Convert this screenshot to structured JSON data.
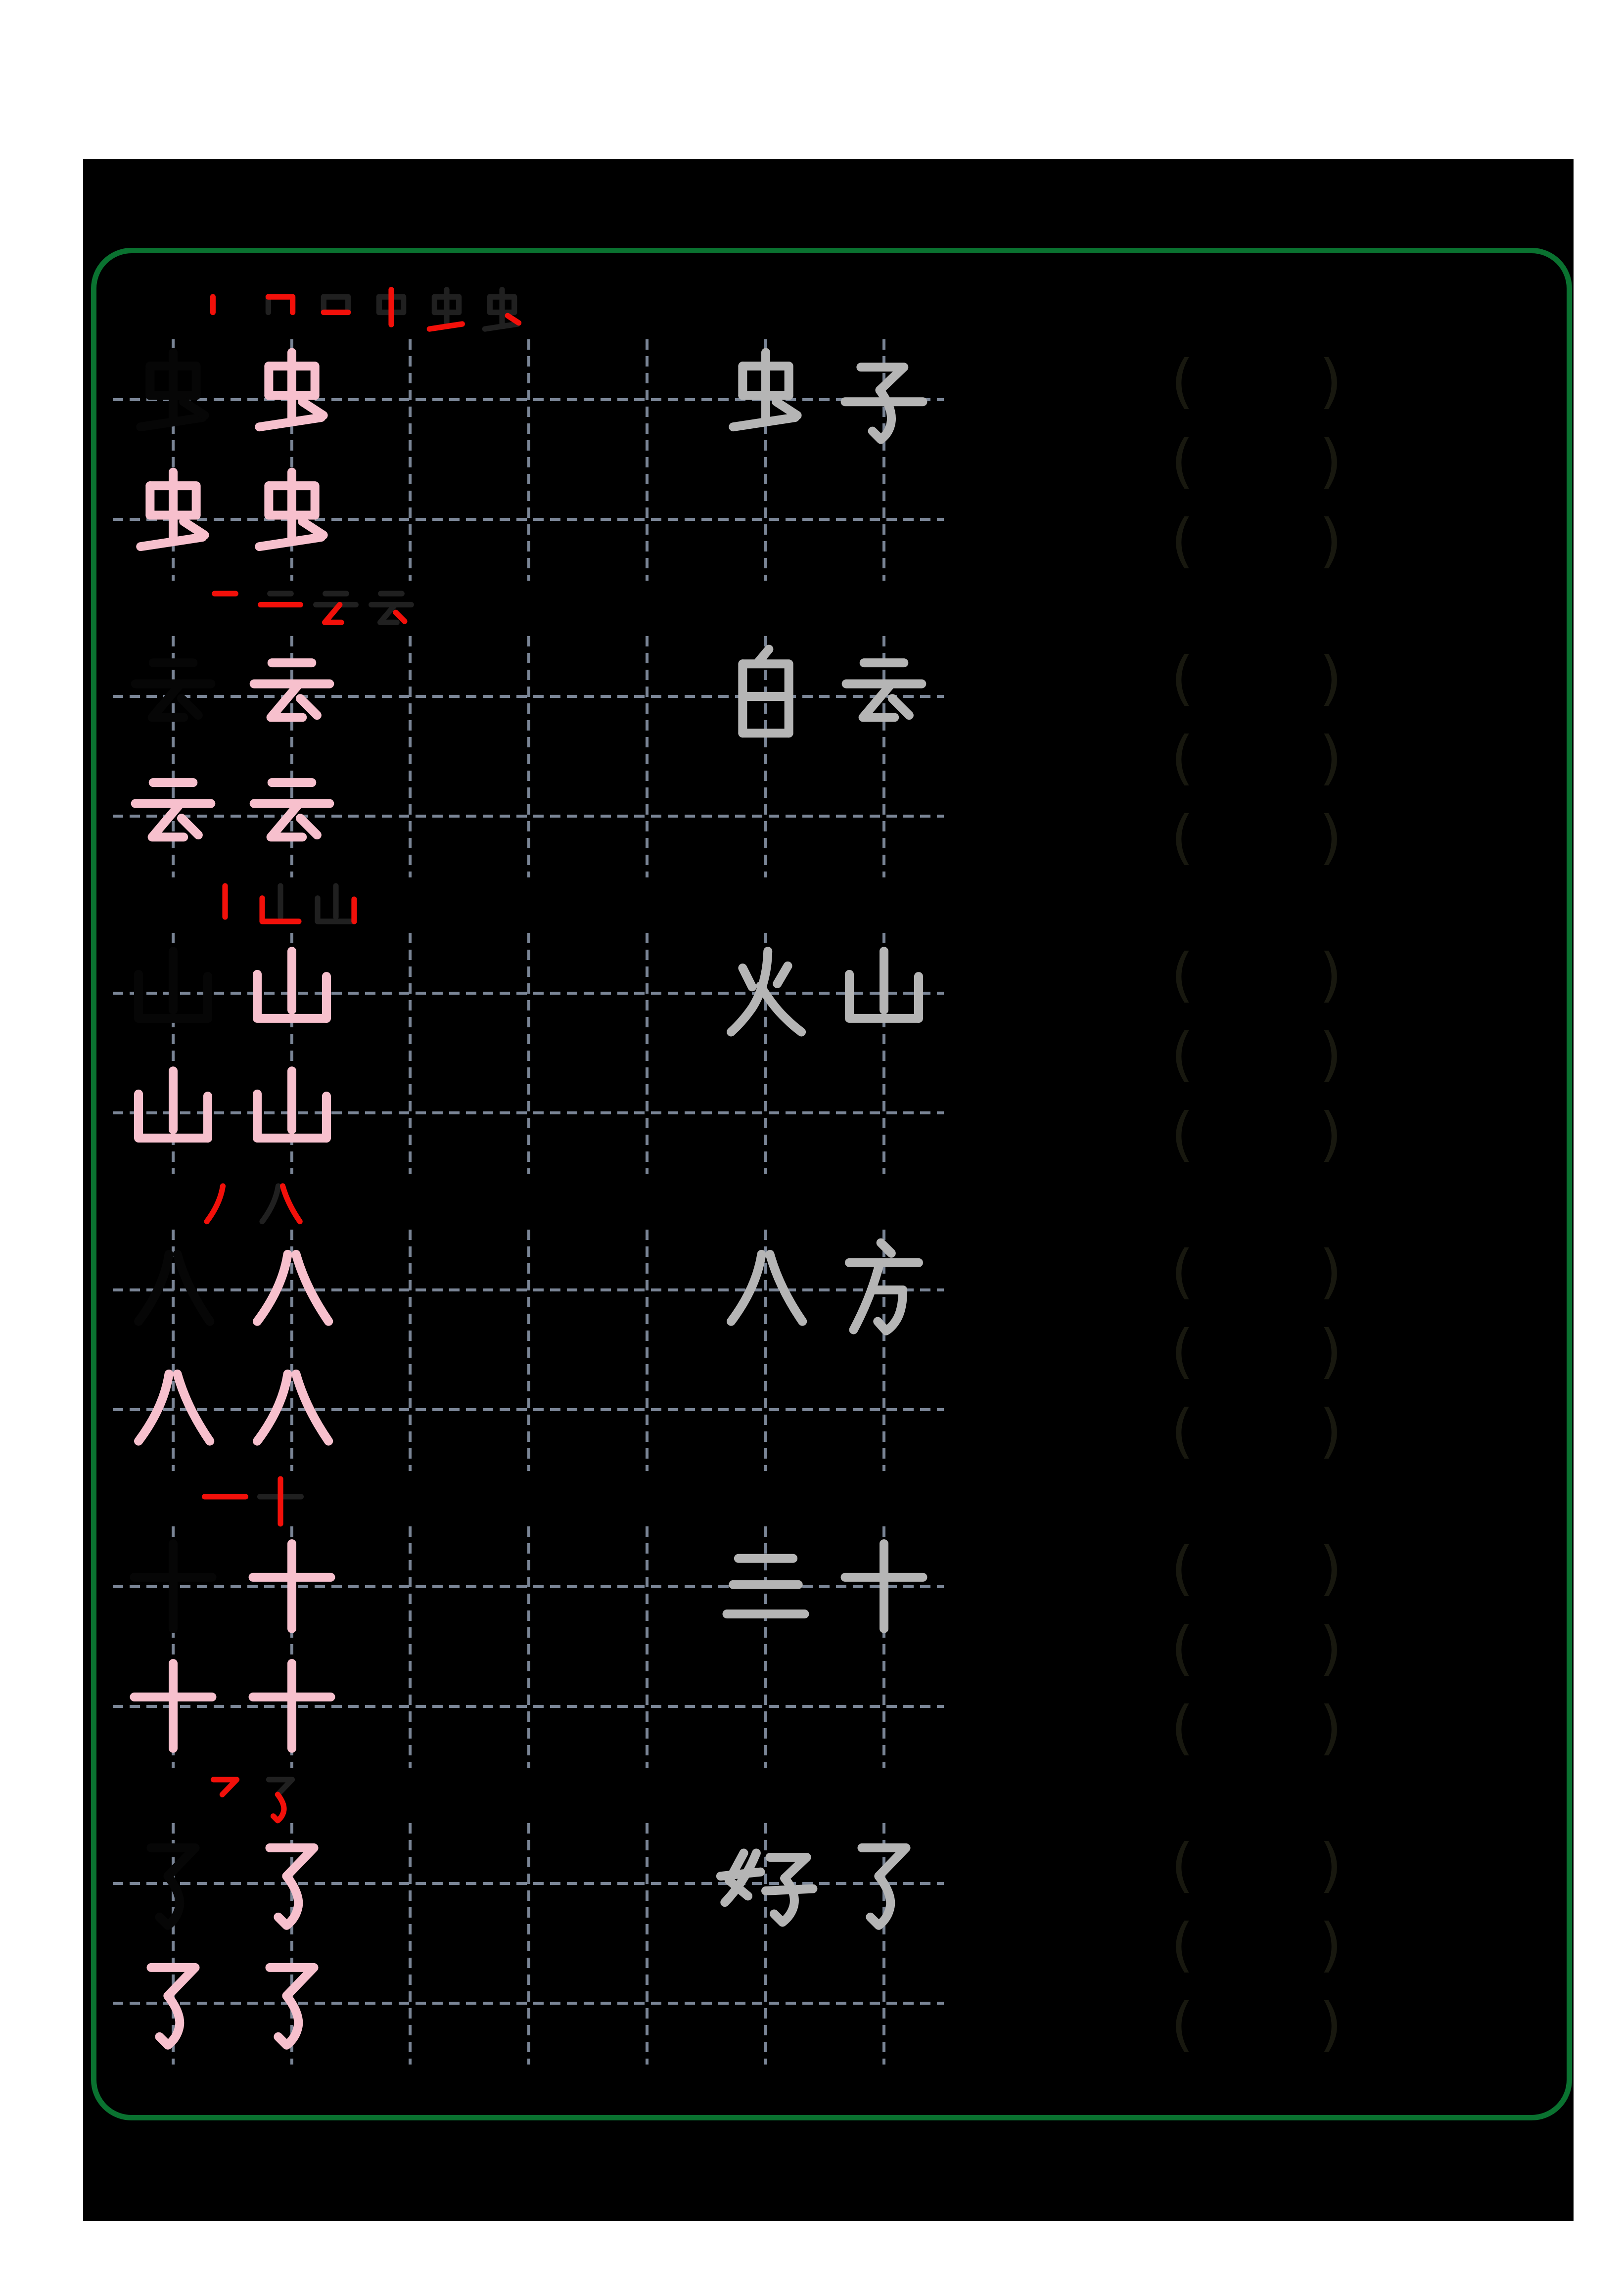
{
  "colors": {
    "page_background": "#ffffff",
    "sheet_background": "#000000",
    "frame_green": "#0a7230",
    "trace_pink": "#f7c0cd",
    "new_stroke_red": "#f2100a",
    "written_stroke_dark": "#202020",
    "word_gray": "#b5b5b5",
    "grid_dash": "#7a8596",
    "paren_dark": "#18180f",
    "model_char_black": "#060606"
  },
  "practice_rows": [
    {
      "character": "虫",
      "stroke_count": 6,
      "word": "虫子"
    },
    {
      "character": "云",
      "stroke_count": 4,
      "word": "白云"
    },
    {
      "character": "山",
      "stroke_count": 3,
      "word": "火山"
    },
    {
      "character": "八",
      "stroke_count": 2,
      "word": "八方"
    },
    {
      "character": "十",
      "stroke_count": 2,
      "word": "三十"
    },
    {
      "character": "了",
      "stroke_count": 2,
      "word": "好了"
    }
  ],
  "cells": {
    "trace_repeats_line1": 1,
    "trace_repeats_line2": 2,
    "paren_open": "(",
    "paren_close": ")",
    "paren_pairs_per_row": 3
  }
}
